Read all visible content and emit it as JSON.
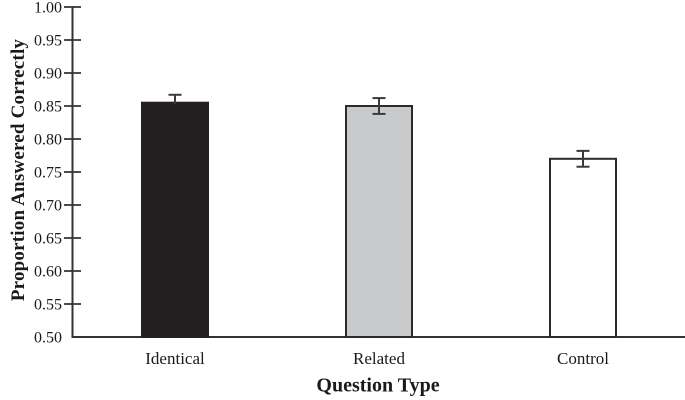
{
  "figure": {
    "y_axis_title": "Proportion Answered Correctly",
    "x_axis_title": "Question Type"
  },
  "chart_data": {
    "type": "bar",
    "title": "",
    "xlabel": "Question Type",
    "ylabel": "Proportion Answered Correctly",
    "categories": [
      "Identical",
      "Related",
      "Control"
    ],
    "values": [
      0.855,
      0.85,
      0.77
    ],
    "errors": [
      0.012,
      0.012,
      0.012
    ],
    "error_lower_visible": [
      false,
      true,
      true
    ],
    "bar_fills": [
      "#231F20",
      "#C9CACB",
      "#FFFFFF"
    ],
    "bar_borders": [
      "#231F20",
      "#2B2B2B",
      "#2B2B2B"
    ],
    "error_bar_color": "#3A3A3A",
    "axis_color": "#333333",
    "ylim": [
      0.5,
      1.0
    ],
    "ytick_step": 0.05,
    "ytick_labels": [
      "0.50",
      "0.55",
      "0.60",
      "0.65",
      "0.70",
      "0.75",
      "0.80",
      "0.85",
      "0.90",
      "0.95",
      "1.00"
    ],
    "grid": false,
    "legend": null
  }
}
